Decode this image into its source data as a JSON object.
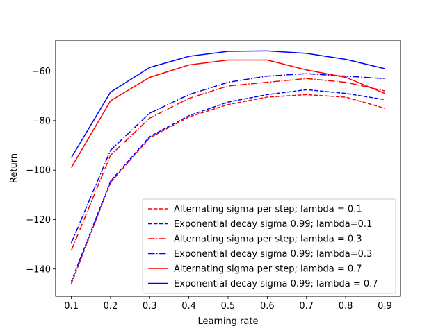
{
  "chart_data": {
    "type": "line",
    "title": "",
    "xlabel": "Learning rate",
    "ylabel": "Return",
    "x": [
      0.1,
      0.2,
      0.3,
      0.4,
      0.5,
      0.6,
      0.7,
      0.8,
      0.9
    ],
    "xticks": [
      "0.1",
      "0.2",
      "0.3",
      "0.4",
      "0.5",
      "0.6",
      "0.7",
      "0.8",
      "0.9"
    ],
    "yticks": [
      -140,
      -120,
      -100,
      -80,
      -60
    ],
    "ytick_labels": [
      "−140",
      "−120",
      "−100",
      "−80",
      "−60"
    ],
    "xlim": [
      0.06,
      0.94
    ],
    "ylim": [
      -151,
      -47.5
    ],
    "grid": false,
    "legend_position": "lower-right",
    "series": [
      {
        "name": "Alternating sigma per step; lambda = 0.1",
        "color": "#ff0000",
        "style": "dashed",
        "values": [
          -146,
          -105,
          -87,
          -78.5,
          -73.5,
          -70.5,
          -69.5,
          -70.5,
          -75
        ]
      },
      {
        "name": "Exponential decay sigma 0.99; lambda=0.1",
        "color": "#0000ff",
        "style": "dashed",
        "values": [
          -145,
          -104.5,
          -86.5,
          -78,
          -72.5,
          -69.5,
          -67.5,
          -69,
          -71.5
        ]
      },
      {
        "name": "Alternating sigma per step; lambda = 0.3",
        "color": "#ff0000",
        "style": "dashdot",
        "values": [
          -132.5,
          -94,
          -79,
          -71,
          -66,
          -64.5,
          -63,
          -64.5,
          -68
        ]
      },
      {
        "name": "Exponential decay sigma 0.99; lambda=0.3",
        "color": "#0000ff",
        "style": "dashdot",
        "values": [
          -129.5,
          -92,
          -77,
          -69.5,
          -64.5,
          -62,
          -61,
          -62,
          -63
        ]
      },
      {
        "name": "Alternating sigma per step; lambda = 0.7",
        "color": "#ff0000",
        "style": "solid",
        "values": [
          -99,
          -72,
          -62.5,
          -57.5,
          -55.5,
          -55.5,
          -59.5,
          -62.5,
          -69
        ]
      },
      {
        "name": "Exponential decay sigma 0.99; lambda = 0.7",
        "color": "#0000ff",
        "style": "solid",
        "values": [
          -95,
          -68.5,
          -58.5,
          -54,
          -52,
          -51.8,
          -52.8,
          -55.2,
          -59
        ]
      }
    ]
  }
}
